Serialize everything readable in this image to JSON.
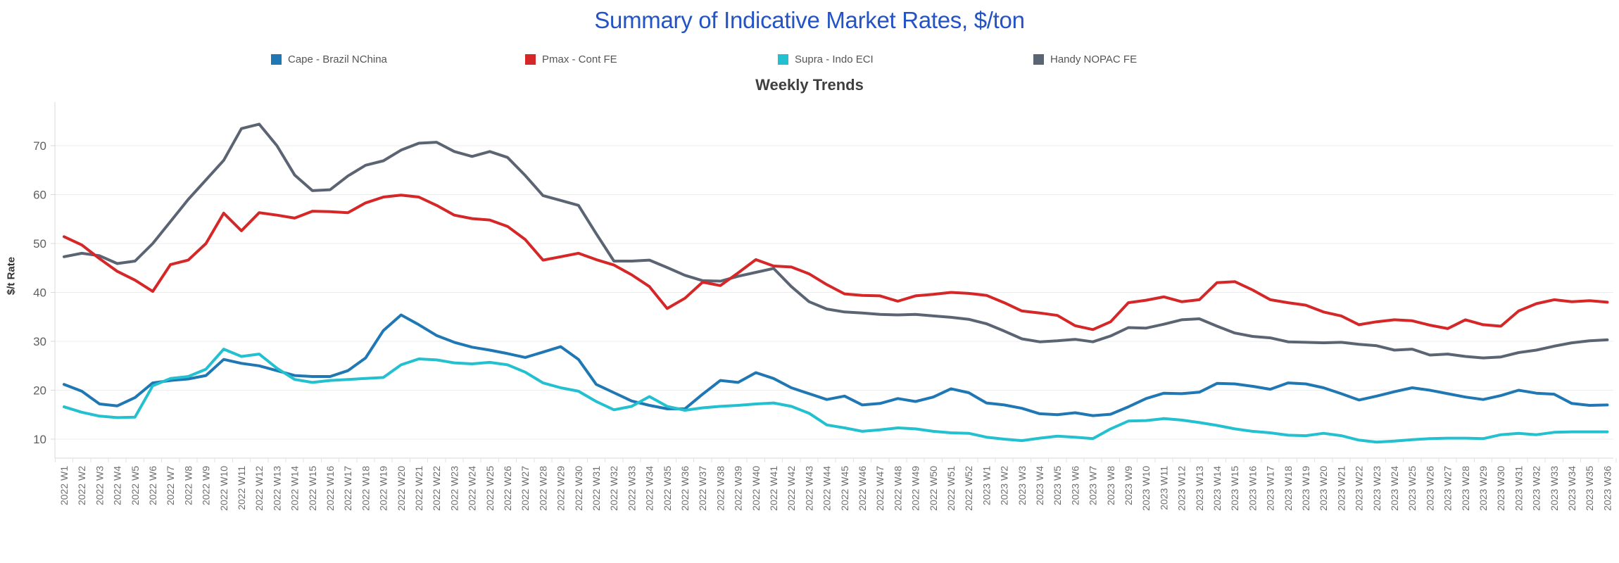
{
  "header": {
    "title": "Summary of Indicative Market Rates, $/ton",
    "subtitle": "Weekly Trends"
  },
  "chart_data": {
    "type": "line",
    "title": "Weekly Trends",
    "xlabel": "",
    "ylabel": "$/t Rate",
    "ylim": [
      6,
      77
    ],
    "yticks": [
      10,
      20,
      30,
      40,
      50,
      60,
      70
    ],
    "grid": "horizontal",
    "legend_position": "top",
    "categories": [
      "2022 W1",
      "2022 W2",
      "2022 W3",
      "2022 W4",
      "2022 W5",
      "2022 W6",
      "2022 W7",
      "2022 W8",
      "2022 W9",
      "2022 W10",
      "2022 W11",
      "2022 W12",
      "2022 W13",
      "2022 W14",
      "2022 W15",
      "2022 W16",
      "2022 W17",
      "2022 W18",
      "2022 W19",
      "2022 W20",
      "2022 W21",
      "2022 W22",
      "2022 W23",
      "2022 W24",
      "2022 W25",
      "2022 W26",
      "2022 W27",
      "2022 W28",
      "2022 W29",
      "2022 W30",
      "2022 W31",
      "2022 W32",
      "2022 W33",
      "2022 W34",
      "2022 W35",
      "2022 W36",
      "2022 W37",
      "2022 W38",
      "2022 W39",
      "2022 W40",
      "2022 W41",
      "2022 W42",
      "2022 W43",
      "2022 W44",
      "2022 W45",
      "2022 W46",
      "2022 W47",
      "2022 W48",
      "2022 W49",
      "2022 W50",
      "2022 W51",
      "2022 W52",
      "2023 W1",
      "2023 W2",
      "2023 W3",
      "2023 W4",
      "2023 W5",
      "2023 W6",
      "2023 W7",
      "2023 W8",
      "2023 W9",
      "2023 W10",
      "2023 W11",
      "2023 W12",
      "2023 W13",
      "2023 W14",
      "2023 W15",
      "2023 W16",
      "2023 W17",
      "2023 W18",
      "2023 W19",
      "2023 W20",
      "2023 W21",
      "2023 W22",
      "2023 W23",
      "2023 W24",
      "2023 W25",
      "2023 W26",
      "2023 W27",
      "2023 W28",
      "2023 W29",
      "2023 W30",
      "2023 W31",
      "2023 W32",
      "2023 W33",
      "2023 W34",
      "2023 W35",
      "2023 W36"
    ],
    "series": [
      {
        "name": "Cape - Brazil NChina",
        "color": "#1f77b4",
        "values": [
          21.2,
          19.8,
          17.2,
          16.8,
          18.5,
          21.5,
          22.0,
          22.3,
          23.0,
          26.3,
          25.5,
          25.0,
          24.0,
          23.0,
          22.8,
          22.8,
          24.0,
          26.6,
          32.2,
          35.4,
          33.4,
          31.2,
          29.8,
          28.8,
          28.2,
          27.5,
          26.7,
          27.8,
          28.9,
          26.3,
          21.2,
          19.5,
          17.8,
          16.9,
          16.2,
          16.2,
          19.2,
          22.0,
          21.6,
          23.6,
          22.4,
          20.5,
          19.3,
          18.1,
          18.8,
          17.0,
          17.3,
          18.3,
          17.7,
          18.6,
          20.3,
          19.5,
          17.4,
          17.0,
          16.3,
          15.2,
          15.0,
          15.4,
          14.8,
          15.1,
          16.6,
          18.3,
          19.4,
          19.3,
          19.6,
          21.4,
          21.3,
          20.8,
          20.2,
          21.5,
          21.3,
          20.5,
          19.3,
          18.0,
          18.8,
          19.7,
          20.5,
          20.0,
          19.3,
          18.6,
          18.1,
          18.9,
          20.0,
          19.4,
          19.2,
          17.3,
          16.9,
          17.0
        ]
      },
      {
        "name": "Pmax - Cont FE",
        "color": "#d62728",
        "values": [
          51.4,
          49.7,
          46.9,
          44.3,
          42.5,
          40.2,
          45.7,
          46.6,
          50.0,
          56.2,
          52.6,
          56.3,
          55.8,
          55.2,
          56.6,
          56.5,
          56.3,
          58.3,
          59.5,
          59.9,
          59.5,
          57.8,
          55.8,
          55.1,
          54.8,
          53.5,
          50.8,
          46.6,
          47.3,
          48.0,
          46.7,
          45.6,
          43.6,
          41.2,
          36.7,
          38.8,
          42.1,
          41.4,
          44.0,
          46.7,
          45.4,
          45.2,
          43.8,
          41.6,
          39.7,
          39.4,
          39.3,
          38.2,
          39.3,
          39.6,
          40.0,
          39.8,
          39.4,
          37.9,
          36.2,
          35.8,
          35.3,
          33.2,
          32.4,
          34.0,
          37.9,
          38.4,
          39.1,
          38.1,
          38.5,
          42.0,
          42.2,
          40.5,
          38.5,
          37.9,
          37.4,
          36.0,
          35.2,
          33.4,
          34.0,
          34.4,
          34.2,
          33.3,
          32.6,
          34.4,
          33.4,
          33.1,
          36.2,
          37.7,
          38.5,
          38.1,
          38.3,
          38.0
        ]
      },
      {
        "name": "Supra - Indo ECI",
        "color": "#23c0d0",
        "values": [
          16.6,
          15.5,
          14.7,
          14.4,
          14.5,
          20.9,
          22.4,
          22.8,
          24.3,
          28.4,
          26.9,
          27.4,
          24.5,
          22.2,
          21.6,
          22.0,
          22.2,
          22.4,
          22.6,
          25.2,
          26.4,
          26.2,
          25.6,
          25.4,
          25.7,
          25.2,
          23.7,
          21.5,
          20.5,
          19.8,
          17.7,
          16.0,
          16.7,
          18.7,
          16.7,
          15.9,
          16.4,
          16.7,
          16.9,
          17.2,
          17.4,
          16.7,
          15.3,
          12.9,
          12.3,
          11.6,
          11.9,
          12.3,
          12.1,
          11.6,
          11.3,
          11.2,
          10.4,
          10.0,
          9.7,
          10.2,
          10.6,
          10.4,
          10.1,
          12.1,
          13.7,
          13.8,
          14.2,
          13.9,
          13.4,
          12.8,
          12.1,
          11.6,
          11.3,
          10.8,
          10.7,
          11.2,
          10.7,
          9.8,
          9.4,
          9.6,
          9.9,
          10.1,
          10.2,
          10.2,
          10.1,
          10.9,
          11.2,
          10.9,
          11.4,
          11.5,
          11.5,
          11.5
        ]
      },
      {
        "name": "Handy NOPAC FE",
        "color": "#5b6472",
        "values": [
          47.3,
          48.0,
          47.5,
          45.9,
          46.4,
          50.0,
          54.5,
          59.0,
          63.0,
          67.0,
          73.5,
          74.4,
          70.0,
          64.0,
          60.8,
          61.0,
          63.8,
          66.0,
          66.9,
          69.1,
          70.5,
          70.7,
          68.8,
          67.8,
          68.8,
          67.6,
          63.9,
          59.8,
          58.8,
          57.8,
          52.0,
          46.4,
          46.4,
          46.6,
          45.1,
          43.5,
          42.4,
          42.3,
          43.3,
          44.1,
          44.9,
          41.2,
          38.1,
          36.6,
          36.0,
          35.8,
          35.5,
          35.4,
          35.5,
          35.2,
          34.9,
          34.5,
          33.6,
          32.1,
          30.5,
          29.9,
          30.1,
          30.4,
          29.9,
          31.1,
          32.8,
          32.7,
          33.5,
          34.4,
          34.6,
          33.1,
          31.7,
          31.0,
          30.7,
          29.9,
          29.8,
          29.7,
          29.8,
          29.4,
          29.1,
          28.2,
          28.4,
          27.2,
          27.4,
          26.9,
          26.6,
          26.8,
          27.7,
          28.2,
          29.0,
          29.7,
          30.1,
          30.3
        ]
      }
    ]
  }
}
